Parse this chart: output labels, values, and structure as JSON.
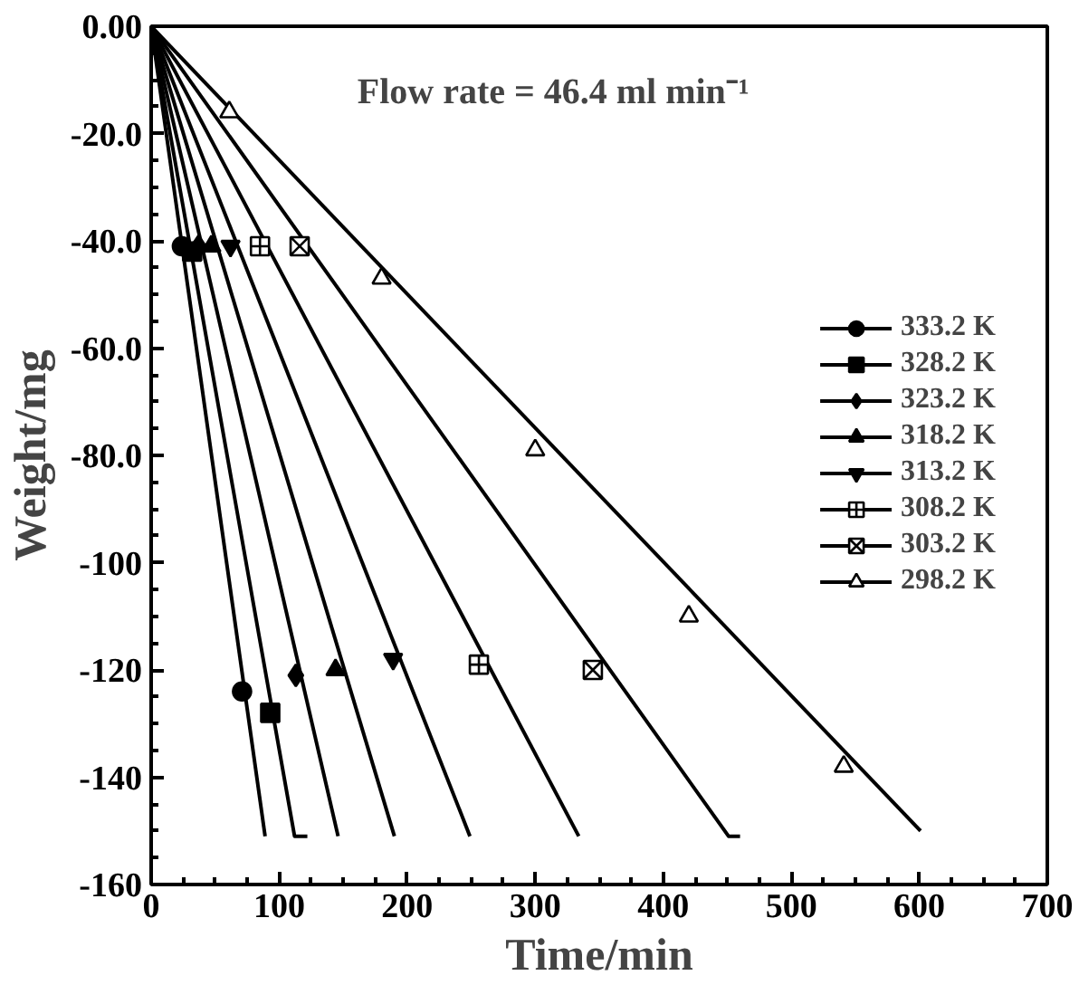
{
  "chart_data": {
    "type": "line",
    "xlabel": "Time/min",
    "ylabel": "Weight/mg",
    "annotations": [
      "Flow rate = 46.4 ml min⁻¹"
    ],
    "xlim": [
      0,
      700
    ],
    "xticks": [
      0,
      100,
      200,
      300,
      400,
      500,
      600,
      700
    ],
    "ylim": [
      -160,
      0
    ],
    "yticks": [
      {
        "value": 0,
        "label": "0.00"
      },
      {
        "value": -20,
        "label": "-20.0"
      },
      {
        "value": -40,
        "label": "-40.0"
      },
      {
        "value": -60,
        "label": "-60.0"
      },
      {
        "value": -80,
        "label": "-80.0"
      },
      {
        "value": -100,
        "label": "-100"
      },
      {
        "value": -120,
        "label": "-120"
      },
      {
        "value": -140,
        "label": "-140"
      },
      {
        "value": -160,
        "label": "-160"
      }
    ],
    "grid": false,
    "legend": "right",
    "line_style": "solid",
    "series": [
      {
        "color": "#000000",
        "marker": "none",
        "x": [
          0,
          89
        ],
        "values": [
          0,
          -151
        ]
      },
      {
        "type": "scatter",
        "name": "333.2 K",
        "color": "#000000",
        "marker": "circle",
        "x": [
          24,
          71
        ],
        "values": [
          -41,
          -124
        ]
      },
      {
        "color": "#000000",
        "marker": "none",
        "x": [
          0,
          112,
          122
        ],
        "values": [
          0,
          -151,
          -151
        ]
      },
      {
        "type": "scatter",
        "name": "328.2 K",
        "color": "#000000",
        "marker": "square",
        "x": [
          32,
          93
        ],
        "values": [
          -42,
          -128
        ]
      },
      {
        "color": "#000000",
        "marker": "none",
        "x": [
          0,
          146
        ],
        "values": [
          0,
          -151
        ]
      },
      {
        "type": "scatter",
        "name": "323.2 K",
        "color": "#000000",
        "marker": "diamond",
        "x": [
          37,
          113
        ],
        "values": [
          -41,
          -121
        ]
      },
      {
        "color": "#000000",
        "marker": "none",
        "x": [
          0,
          190
        ],
        "values": [
          0,
          -151
        ]
      },
      {
        "type": "scatter",
        "name": "318.2 K",
        "color": "#000000",
        "marker": "triangle",
        "x": [
          47,
          144
        ],
        "values": [
          -41,
          -120
        ]
      },
      {
        "color": "#000000",
        "marker": "none",
        "x": [
          0,
          249
        ],
        "values": [
          0,
          -151
        ]
      },
      {
        "type": "scatter",
        "name": "313.2 K",
        "color": "#000000",
        "marker": "triangle",
        "x": [
          62,
          189
        ],
        "values": [
          -41,
          -118
        ]
      },
      {
        "color": "#000000",
        "marker": "none",
        "x": [
          0,
          334
        ],
        "values": [
          0,
          -151
        ]
      },
      {
        "type": "scatter",
        "name": "308.2 K",
        "color": "#000000",
        "marker": "cross",
        "x": [
          85,
          256
        ],
        "values": [
          -41,
          -119
        ]
      },
      {
        "color": "#000000",
        "marker": "none",
        "x": [
          0,
          451,
          460
        ],
        "values": [
          0,
          -151,
          -151
        ]
      },
      {
        "type": "scatter",
        "name": "303.2 K",
        "color": "#000000",
        "marker": "cross",
        "x": [
          116,
          345
        ],
        "values": [
          -41,
          -120
        ]
      },
      {
        "color": "#000000",
        "marker": "none",
        "x": [
          0,
          601
        ],
        "values": [
          0,
          -150
        ]
      },
      {
        "type": "scatter",
        "name": "298.2 K",
        "color": "#000000",
        "marker": "triangle",
        "x": [
          61,
          180,
          300,
          420,
          541
        ],
        "values": [
          -16,
          -47,
          -79,
          -110,
          -138
        ]
      }
    ]
  }
}
